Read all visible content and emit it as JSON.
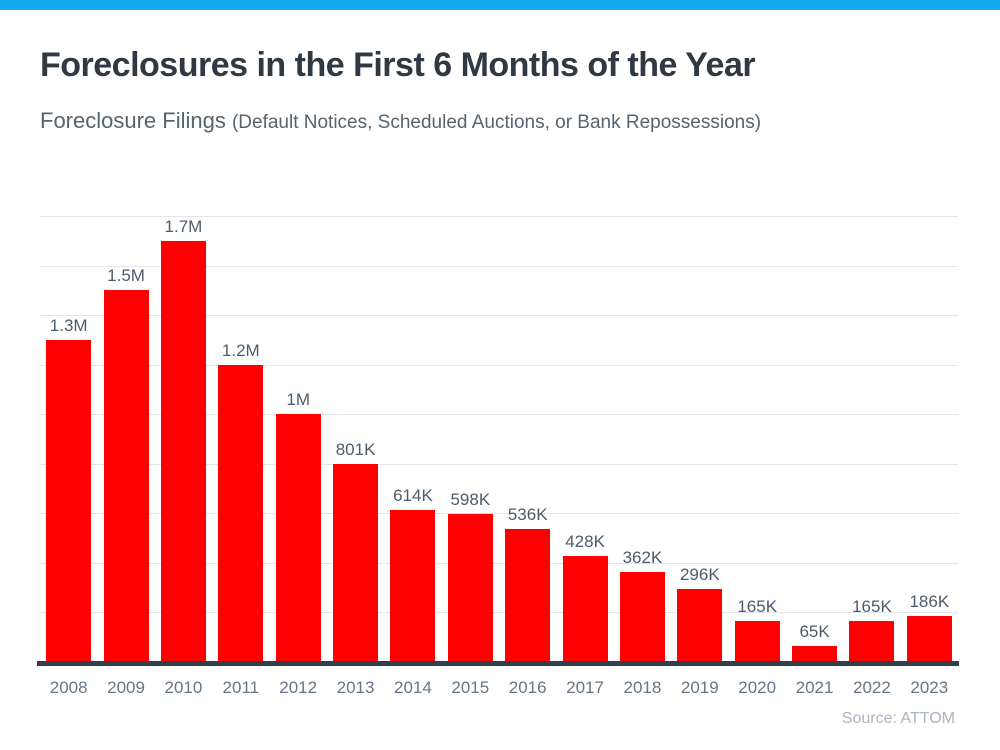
{
  "header": {
    "title": "Foreclosures in the First 6 Months of the Year",
    "subtitle_main": "Foreclosure Filings ",
    "subtitle_paren": "(Default Notices, Scheduled Auctions, or Bank Repossessions)"
  },
  "footer": {
    "source": "Source: ATTOM"
  },
  "colors": {
    "topbar": "#16abee",
    "bar": "#fe0000",
    "title_text": "#2e3944",
    "subtitle_text": "#546470",
    "value_label_text": "#4d5c6b",
    "year_label_text": "#647687",
    "gridline": "#e4e4ea",
    "axis_line": "#333e48",
    "source_text": "#abb5bf"
  },
  "chart_data": {
    "type": "bar",
    "title": "Foreclosures in the First 6 Months of the Year",
    "subtitle": "Foreclosure Filings (Default Notices, Scheduled Auctions, or Bank Repossessions)",
    "xlabel": "",
    "ylabel": "",
    "categories": [
      "2008",
      "2009",
      "2010",
      "2011",
      "2012",
      "2013",
      "2014",
      "2015",
      "2016",
      "2017",
      "2018",
      "2019",
      "2020",
      "2021",
      "2022",
      "2023"
    ],
    "values_thousands": [
      1300,
      1500,
      1700,
      1200,
      1000,
      801,
      614,
      598,
      536,
      428,
      362,
      296,
      165,
      65,
      165,
      186
    ],
    "labels": [
      "1.3M",
      "1.5M",
      "1.7M",
      "1.2M",
      "1M",
      "801K",
      "614K",
      "598K",
      "536K",
      "428K",
      "362K",
      "296K",
      "165K",
      "65K",
      "165K",
      "186K"
    ],
    "ylim_thousands": [
      0,
      1800
    ],
    "gridline_step_thousands": 200,
    "grid": "horizontal",
    "legend": "none",
    "y_tick_labels_visible": false,
    "source": "Source: ATTOM"
  }
}
